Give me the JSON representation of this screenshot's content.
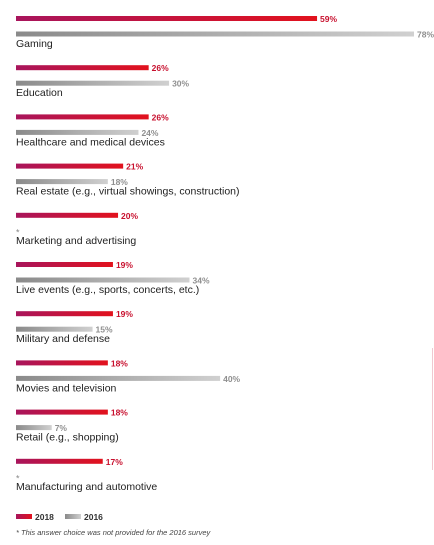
{
  "chart_data": {
    "type": "bar",
    "orientation": "horizontal",
    "categories": [
      "Gaming",
      "Education",
      "Healthcare and medical devices",
      "Real estate (e.g., virtual showings, construction)",
      "Marketing and advertising",
      "Live events (e.g., sports, concerts, etc.)",
      "Military and defense",
      "Movies and television",
      "Retail (e.g., shopping)",
      "Manufacturing and automotive"
    ],
    "series": [
      {
        "name": "2018",
        "color": "#c8102e",
        "values": [
          59,
          26,
          26,
          21,
          20,
          19,
          19,
          18,
          18,
          17
        ],
        "labels": [
          "59%",
          "26%",
          "26%",
          "21%",
          "20%",
          "19%",
          "19%",
          "18%",
          "18%",
          "17%"
        ]
      },
      {
        "name": "2016",
        "color": "#a8a8a8",
        "values": [
          78,
          30,
          24,
          18,
          null,
          34,
          15,
          40,
          7,
          null
        ],
        "labels": [
          "78%",
          "30%",
          "24%",
          "18%",
          "*",
          "34%",
          "15%",
          "40%",
          "7%",
          "*"
        ]
      }
    ],
    "xlim": [
      0,
      78
    ],
    "legend_position": "bottom-left",
    "grid": false
  },
  "footnote": "* This answer choice was not provided for the 2016 survey"
}
